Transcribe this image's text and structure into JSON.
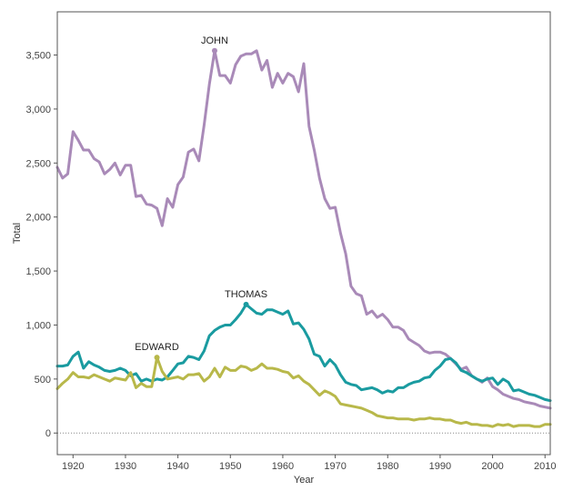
{
  "chart_data": {
    "type": "line",
    "title": "",
    "xlabel": "Year",
    "ylabel": "Total",
    "xlim": [
      1917,
      2011
    ],
    "ylim": [
      -200,
      3900
    ],
    "x_ticks": [
      1920,
      1930,
      1940,
      1950,
      1960,
      1970,
      1980,
      1990,
      2000,
      2010
    ],
    "x_tick_labels": [
      "1920",
      "1930",
      "1940",
      "1950",
      "1960",
      "1970",
      "1980",
      "1990",
      "2000",
      "2010"
    ],
    "y_ticks": [
      0,
      500,
      1000,
      1500,
      2000,
      2500,
      3000,
      3500
    ],
    "y_tick_labels": [
      "0",
      "500",
      "1,000",
      "1,500",
      "2,000",
      "2,500",
      "3,000",
      "3,500"
    ],
    "reference_line": 0,
    "series": [
      {
        "name": "JOHN",
        "color": "#a98ab8",
        "label_year": 1947,
        "x": [
          1917,
          1918,
          1919,
          1920,
          1921,
          1922,
          1923,
          1924,
          1925,
          1926,
          1927,
          1928,
          1929,
          1930,
          1931,
          1932,
          1933,
          1934,
          1935,
          1936,
          1937,
          1938,
          1939,
          1940,
          1941,
          1942,
          1943,
          1944,
          1945,
          1946,
          1947,
          1948,
          1949,
          1950,
          1951,
          1952,
          1953,
          1954,
          1955,
          1956,
          1957,
          1958,
          1959,
          1960,
          1961,
          1962,
          1963,
          1964,
          1965,
          1966,
          1967,
          1968,
          1969,
          1970,
          1971,
          1972,
          1973,
          1974,
          1975,
          1976,
          1977,
          1978,
          1979,
          1980,
          1981,
          1982,
          1983,
          1984,
          1985,
          1986,
          1987,
          1988,
          1989,
          1990,
          1991,
          1992,
          1993,
          1994,
          1995,
          1996,
          1997,
          1998,
          1999,
          2000,
          2001,
          2002,
          2003,
          2004,
          2005,
          2006,
          2007,
          2008,
          2009,
          2010,
          2011
        ],
        "values": [
          2460,
          2360,
          2400,
          2790,
          2710,
          2620,
          2620,
          2540,
          2510,
          2400,
          2440,
          2500,
          2390,
          2480,
          2480,
          2190,
          2200,
          2120,
          2110,
          2080,
          1920,
          2170,
          2090,
          2300,
          2370,
          2600,
          2630,
          2520,
          2850,
          3230,
          3540,
          3310,
          3310,
          3240,
          3410,
          3490,
          3510,
          3510,
          3540,
          3360,
          3450,
          3200,
          3330,
          3240,
          3330,
          3300,
          3160,
          3420,
          2840,
          2620,
          2360,
          2170,
          2080,
          2090,
          1850,
          1660,
          1360,
          1290,
          1270,
          1100,
          1130,
          1070,
          1100,
          1050,
          980,
          980,
          950,
          870,
          840,
          810,
          760,
          740,
          750,
          750,
          730,
          690,
          640,
          590,
          610,
          530,
          500,
          470,
          510,
          430,
          400,
          360,
          340,
          320,
          310,
          290,
          280,
          270,
          250,
          240,
          230
        ]
      },
      {
        "name": "THOMAS",
        "color": "#1a9ba0",
        "label_year": 1953,
        "x": [
          1917,
          1918,
          1919,
          1920,
          1921,
          1922,
          1923,
          1924,
          1925,
          1926,
          1927,
          1928,
          1929,
          1930,
          1931,
          1932,
          1933,
          1934,
          1935,
          1936,
          1937,
          1938,
          1939,
          1940,
          1941,
          1942,
          1943,
          1944,
          1945,
          1946,
          1947,
          1948,
          1949,
          1950,
          1951,
          1952,
          1953,
          1954,
          1955,
          1956,
          1957,
          1958,
          1959,
          1960,
          1961,
          1962,
          1963,
          1964,
          1965,
          1966,
          1967,
          1968,
          1969,
          1970,
          1971,
          1972,
          1973,
          1974,
          1975,
          1976,
          1977,
          1978,
          1979,
          1980,
          1981,
          1982,
          1983,
          1984,
          1985,
          1986,
          1987,
          1988,
          1989,
          1990,
          1991,
          1992,
          1993,
          1994,
          1995,
          1996,
          1997,
          1998,
          1999,
          2000,
          2001,
          2002,
          2003,
          2004,
          2005,
          2006,
          2007,
          2008,
          2009,
          2010,
          2011
        ],
        "values": [
          620,
          620,
          630,
          710,
          750,
          600,
          660,
          630,
          610,
          580,
          570,
          580,
          600,
          580,
          530,
          550,
          480,
          500,
          480,
          500,
          490,
          520,
          580,
          640,
          650,
          710,
          700,
          680,
          760,
          900,
          950,
          980,
          1000,
          1000,
          1050,
          1110,
          1190,
          1150,
          1110,
          1100,
          1140,
          1140,
          1120,
          1100,
          1130,
          1010,
          1020,
          960,
          870,
          730,
          710,
          620,
          680,
          630,
          540,
          470,
          450,
          440,
          400,
          410,
          420,
          400,
          370,
          390,
          380,
          420,
          420,
          450,
          470,
          480,
          510,
          520,
          580,
          620,
          680,
          690,
          650,
          580,
          560,
          530,
          500,
          480,
          500,
          510,
          450,
          500,
          470,
          390,
          400,
          380,
          360,
          350,
          330,
          310,
          300
        ]
      },
      {
        "name": "EDWARD",
        "color": "#b8b84a",
        "label_year": 1936,
        "x": [
          1917,
          1918,
          1919,
          1920,
          1921,
          1922,
          1923,
          1924,
          1925,
          1926,
          1927,
          1928,
          1929,
          1930,
          1931,
          1932,
          1933,
          1934,
          1935,
          1936,
          1937,
          1938,
          1939,
          1940,
          1941,
          1942,
          1943,
          1944,
          1945,
          1946,
          1947,
          1948,
          1949,
          1950,
          1951,
          1952,
          1953,
          1954,
          1955,
          1956,
          1957,
          1958,
          1959,
          1960,
          1961,
          1962,
          1963,
          1964,
          1965,
          1966,
          1967,
          1968,
          1969,
          1970,
          1971,
          1972,
          1973,
          1974,
          1975,
          1976,
          1977,
          1978,
          1979,
          1980,
          1981,
          1982,
          1983,
          1984,
          1985,
          1986,
          1987,
          1988,
          1989,
          1990,
          1991,
          1992,
          1993,
          1994,
          1995,
          1996,
          1997,
          1998,
          1999,
          2000,
          2001,
          2002,
          2003,
          2004,
          2005,
          2006,
          2007,
          2008,
          2009,
          2010,
          2011
        ],
        "values": [
          410,
          460,
          500,
          560,
          520,
          520,
          510,
          540,
          520,
          500,
          480,
          510,
          500,
          490,
          560,
          420,
          460,
          430,
          430,
          700,
          570,
          500,
          510,
          520,
          500,
          540,
          540,
          550,
          480,
          520,
          600,
          520,
          610,
          580,
          580,
          620,
          610,
          580,
          600,
          640,
          600,
          600,
          590,
          570,
          560,
          510,
          530,
          480,
          450,
          400,
          350,
          390,
          370,
          340,
          270,
          260,
          250,
          240,
          230,
          210,
          190,
          160,
          150,
          140,
          140,
          130,
          130,
          130,
          120,
          130,
          130,
          140,
          130,
          130,
          120,
          120,
          100,
          90,
          100,
          80,
          80,
          70,
          70,
          60,
          80,
          70,
          80,
          60,
          70,
          70,
          70,
          60,
          60,
          80,
          80
        ]
      }
    ]
  }
}
